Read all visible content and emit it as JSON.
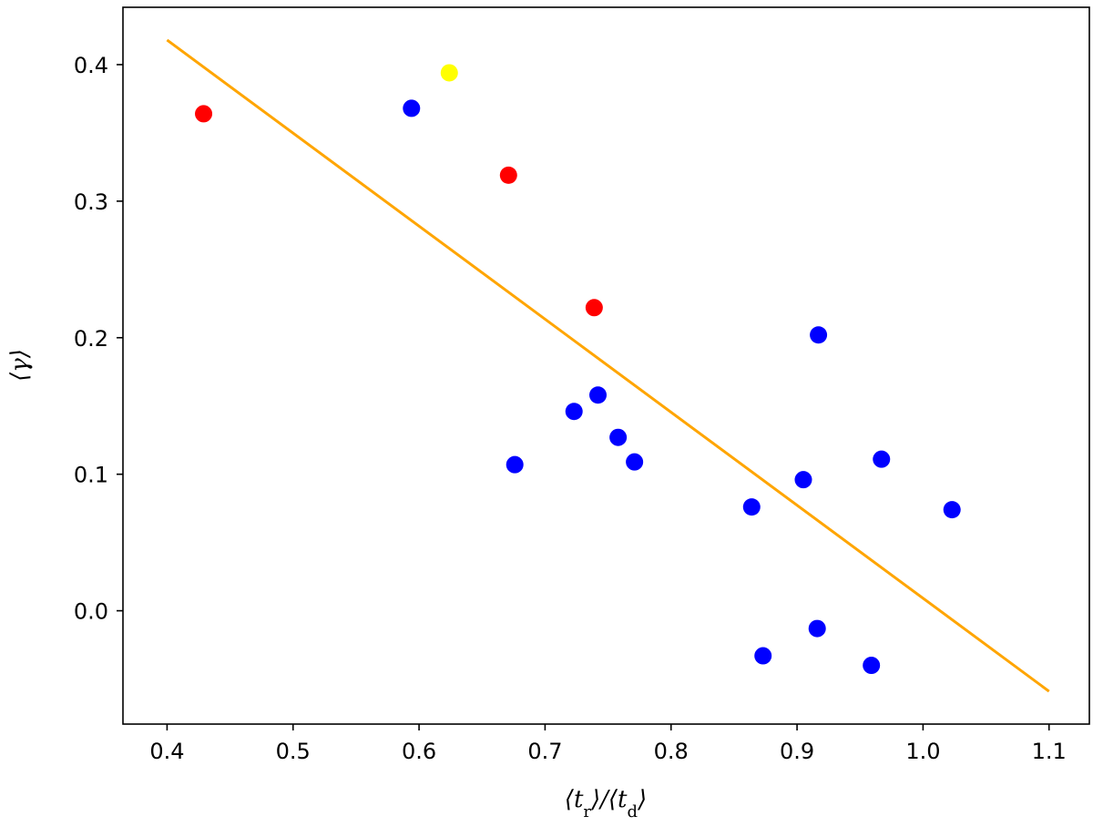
{
  "chart_data": {
    "type": "scatter",
    "xlabel": "⟨t_r⟩/⟨t_d⟩",
    "ylabel": "⟨γ⟩",
    "xlim": [
      0.365,
      1.132
    ],
    "ylim": [
      -0.083,
      0.442
    ],
    "x_ticks": [
      "0.4",
      "0.5",
      "0.6",
      "0.7",
      "0.8",
      "0.9",
      "1.0",
      "1.1"
    ],
    "y_ticks": [
      "0.0",
      "0.1",
      "0.2",
      "0.3",
      "0.4"
    ],
    "grid": false,
    "points": [
      {
        "x": 0.429,
        "y": 0.364,
        "color": "#ff0000"
      },
      {
        "x": 0.594,
        "y": 0.368,
        "color": "#0000ff"
      },
      {
        "x": 0.624,
        "y": 0.394,
        "color": "#ffff00"
      },
      {
        "x": 0.671,
        "y": 0.319,
        "color": "#ff0000"
      },
      {
        "x": 0.739,
        "y": 0.222,
        "color": "#ff0000"
      },
      {
        "x": 0.676,
        "y": 0.107,
        "color": "#0000ff"
      },
      {
        "x": 0.723,
        "y": 0.146,
        "color": "#0000ff"
      },
      {
        "x": 0.742,
        "y": 0.158,
        "color": "#0000ff"
      },
      {
        "x": 0.758,
        "y": 0.127,
        "color": "#0000ff"
      },
      {
        "x": 0.771,
        "y": 0.109,
        "color": "#0000ff"
      },
      {
        "x": 0.864,
        "y": 0.076,
        "color": "#0000ff"
      },
      {
        "x": 0.873,
        "y": -0.033,
        "color": "#0000ff"
      },
      {
        "x": 0.905,
        "y": 0.096,
        "color": "#0000ff"
      },
      {
        "x": 0.916,
        "y": -0.013,
        "color": "#0000ff"
      },
      {
        "x": 0.917,
        "y": 0.202,
        "color": "#0000ff"
      },
      {
        "x": 0.959,
        "y": -0.04,
        "color": "#0000ff"
      },
      {
        "x": 0.967,
        "y": 0.111,
        "color": "#0000ff"
      },
      {
        "x": 1.023,
        "y": 0.074,
        "color": "#0000ff"
      }
    ],
    "fit_line": {
      "x": [
        0.4,
        1.1
      ],
      "y": [
        0.418,
        -0.059
      ],
      "color": "#ffa500"
    }
  }
}
